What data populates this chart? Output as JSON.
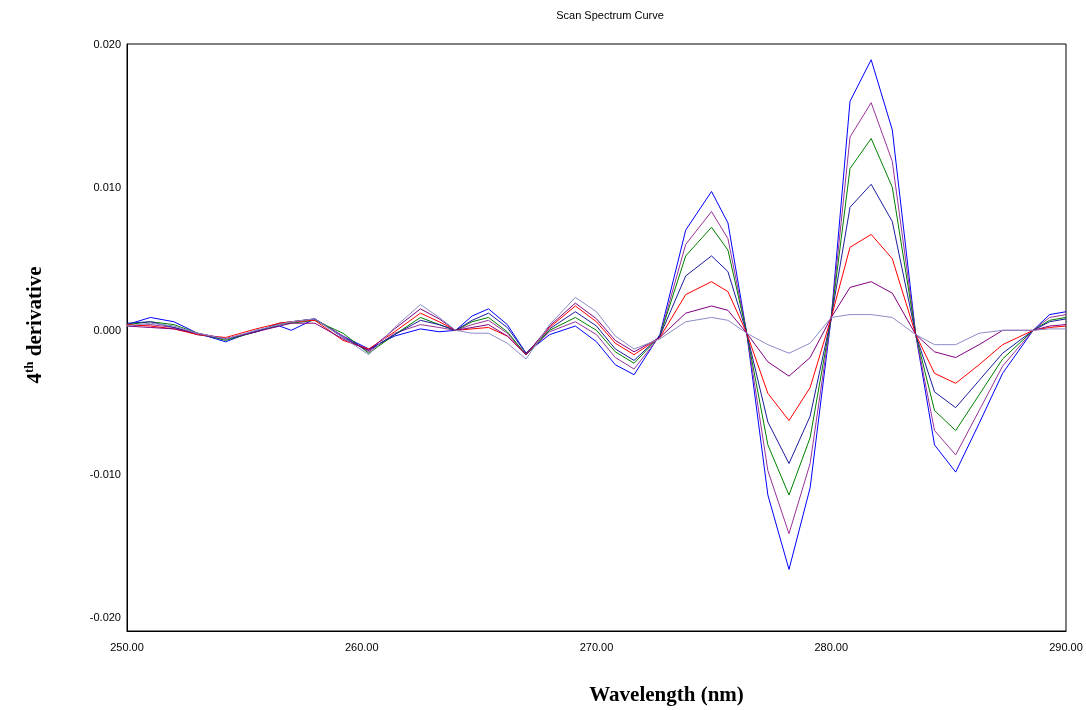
{
  "chart_data": {
    "type": "line",
    "title": "Scan Spectrum Curve",
    "xlabel": "Wavelength (nm)",
    "ylabel": "4$^{th}$ derivative",
    "x": [
      250,
      251,
      252,
      253,
      254.2,
      255.5,
      256.5,
      257,
      258,
      259.2,
      260.3,
      261.4,
      262.5,
      263.3,
      264,
      264.7,
      265.4,
      266.2,
      267,
      268,
      269.1,
      270,
      270.8,
      271.6,
      272.7,
      273.8,
      274.9,
      275.6,
      276.4,
      277.3,
      278.2,
      279.1,
      280,
      280.8,
      281.7,
      282.6,
      283.6,
      284.4,
      285.3,
      286.3,
      287.3,
      288.6,
      289.3,
      290
    ],
    "series": [
      {
        "color": "#0000ff",
        "values": [
          0.0004,
          0.0009,
          0.0006,
          -0.0002,
          -0.0008,
          0.0,
          0.0003,
          0.0,
          0.0008,
          -0.0004,
          -0.0013,
          -0.0004,
          0.0001,
          -0.0001,
          0.0,
          0.001,
          0.0015,
          0.0004,
          -0.0016,
          -0.0003,
          0.0003,
          -0.0008,
          -0.0024,
          -0.0031,
          -0.0003,
          0.007,
          0.0097,
          0.0075,
          -0.0002,
          -0.0115,
          -0.0167,
          -0.011,
          0.0009,
          0.016,
          0.0189,
          0.014,
          -0.0003,
          -0.008,
          -0.0099,
          -0.0065,
          -0.003,
          0.0,
          0.0011,
          0.0013
        ]
      },
      {
        "color": "#993399",
        "values": [
          0.0003,
          0.0004,
          0.0002,
          -0.0002,
          -0.0006,
          -0.0001,
          0.0004,
          0.0006,
          0.0008,
          -0.0004,
          -0.0015,
          -0.0002,
          0.0004,
          0.0002,
          0.0,
          0.0004,
          0.0007,
          -0.0002,
          -0.0017,
          -0.0001,
          0.0006,
          -0.0003,
          -0.0019,
          -0.0027,
          -0.0004,
          0.006,
          0.0083,
          0.0064,
          -0.0002,
          -0.0098,
          -0.0142,
          -0.0093,
          0.0009,
          0.0135,
          0.0159,
          0.0118,
          -0.0003,
          -0.007,
          -0.0087,
          -0.0056,
          -0.0025,
          0.0,
          0.0009,
          0.0011
        ]
      },
      {
        "color": "#008000",
        "values": [
          0.0004,
          0.0006,
          0.0004,
          -0.0002,
          -0.0007,
          -0.0001,
          0.0004,
          0.0005,
          0.0007,
          -0.0002,
          -0.0016,
          -0.0003,
          0.0009,
          0.0004,
          0.0,
          0.0006,
          0.0009,
          -0.0001,
          -0.0017,
          0.0,
          0.0009,
          0.0,
          -0.0015,
          -0.0023,
          -0.0004,
          0.0052,
          0.0072,
          0.0056,
          -0.0002,
          -0.008,
          -0.0115,
          -0.0075,
          0.0009,
          0.0113,
          0.0134,
          0.01,
          -0.0003,
          -0.0056,
          -0.007,
          -0.0045,
          -0.002,
          0.0,
          0.0007,
          0.0009
        ]
      },
      {
        "color": "#1c1c9c",
        "values": [
          0.0005,
          0.0006,
          0.0002,
          -0.0003,
          -0.0006,
          -0.0001,
          0.0005,
          0.0006,
          0.0008,
          -0.0005,
          -0.0014,
          -0.0003,
          0.0007,
          0.0004,
          0.0,
          0.0007,
          0.0012,
          0.0002,
          -0.0016,
          0.0001,
          0.0013,
          0.0003,
          -0.0013,
          -0.0021,
          -0.0004,
          0.0038,
          0.0052,
          0.0041,
          -0.0002,
          -0.0064,
          -0.0093,
          -0.006,
          0.0009,
          0.0086,
          0.0102,
          0.0076,
          -0.0003,
          -0.0043,
          -0.0054,
          -0.0035,
          -0.0016,
          0.0,
          0.0006,
          0.0008
        ]
      },
      {
        "color": "#ff0000",
        "values": [
          0.0004,
          0.0003,
          0.0001,
          -0.0003,
          -0.0005,
          0.0001,
          0.0005,
          0.0006,
          0.0007,
          -0.0007,
          -0.0013,
          -0.0001,
          0.0012,
          0.0006,
          0.0,
          0.0001,
          0.0002,
          -0.0004,
          -0.0017,
          0.0002,
          0.0017,
          0.0006,
          -0.0009,
          -0.0017,
          -0.0005,
          0.0025,
          0.0034,
          0.0027,
          -0.0002,
          -0.0044,
          -0.0063,
          -0.004,
          0.0009,
          0.0058,
          0.0067,
          0.005,
          -0.0003,
          -0.003,
          -0.0037,
          -0.0024,
          -0.001,
          0.0,
          0.0002,
          0.0003
        ]
      },
      {
        "color": "#800080",
        "values": [
          0.0003,
          0.0002,
          0.0001,
          -0.0002,
          -0.0006,
          -0.0001,
          0.0003,
          0.0005,
          0.0005,
          -0.0006,
          -0.0014,
          0.0001,
          0.0015,
          0.0008,
          0.0,
          0.0002,
          0.0004,
          -0.0004,
          -0.0017,
          0.0003,
          0.0019,
          0.0008,
          -0.0007,
          -0.0015,
          -0.0005,
          0.0012,
          0.0017,
          0.0014,
          -0.0002,
          -0.0022,
          -0.0032,
          -0.0019,
          0.0009,
          0.003,
          0.0034,
          0.0026,
          -0.0003,
          -0.0015,
          -0.0019,
          -0.001,
          0.0,
          0.0,
          0.0003,
          0.0004
        ]
      },
      {
        "color": "#8c8cc8",
        "values": [
          0.0003,
          0.0005,
          0.0003,
          -0.0002,
          -0.0006,
          0.0,
          0.0004,
          0.0006,
          0.0008,
          -0.0005,
          -0.0017,
          0.0002,
          0.0018,
          0.0009,
          0.0,
          -0.0002,
          -0.0002,
          -0.0009,
          -0.002,
          0.0004,
          0.0023,
          0.0013,
          -0.0004,
          -0.0013,
          -0.0006,
          0.0006,
          0.0009,
          0.0007,
          -0.0002,
          -0.001,
          -0.0016,
          -0.0009,
          0.0009,
          0.0011,
          0.0011,
          0.0009,
          -0.0003,
          -0.001,
          -0.001,
          -0.0002,
          0.0,
          0.0,
          0.0001,
          0.0001
        ]
      }
    ],
    "xlim": [
      250,
      290
    ],
    "xticks": [
      {
        "value": 250,
        "label": "250.00"
      },
      {
        "value": 260,
        "label": "260.00"
      },
      {
        "value": 270,
        "label": "270.00"
      },
      {
        "value": 280,
        "label": "280.00"
      },
      {
        "value": 290,
        "label": "290.00"
      }
    ],
    "ylim": [
      -0.021,
      0.02
    ],
    "yticks": [
      {
        "value": 0.02,
        "label": "0.020"
      },
      {
        "value": 0.01,
        "label": "0.010"
      },
      {
        "value": 0,
        "label": "0.000"
      },
      {
        "value": -0.01,
        "label": "-0.010"
      },
      {
        "value": -0.02,
        "label": "-0.020"
      }
    ],
    "grid": false,
    "marker": "none",
    "line_style": "solid"
  }
}
